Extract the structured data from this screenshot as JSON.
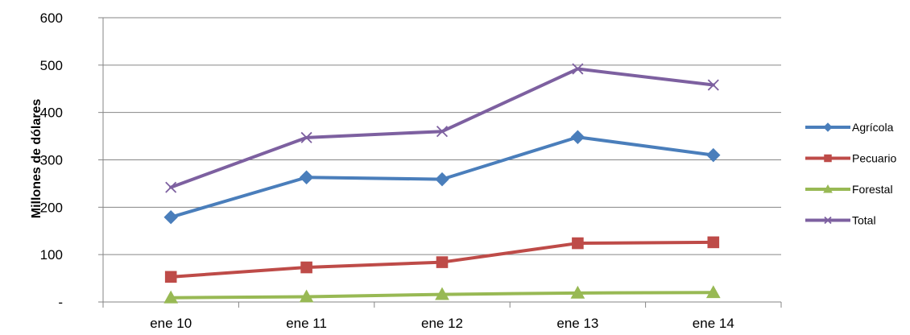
{
  "chart_data": {
    "type": "line",
    "title": "",
    "xlabel": "",
    "ylabel": "Millones de dólares",
    "categories": [
      "ene 10",
      "ene 11",
      "ene 12",
      "ene 13",
      "ene 14"
    ],
    "ylim": [
      0,
      600
    ],
    "y_ticks": [
      {
        "value": 0,
        "label": "-"
      },
      {
        "value": 100,
        "label": "100"
      },
      {
        "value": 200,
        "label": "200"
      },
      {
        "value": 300,
        "label": "300"
      },
      {
        "value": 400,
        "label": "400"
      },
      {
        "value": 500,
        "label": "500"
      },
      {
        "value": 600,
        "label": "600"
      }
    ],
    "grid": true,
    "legend_position": "right",
    "series": [
      {
        "name": "Agrícola",
        "marker": "diamond",
        "color": "#4A7EBB",
        "values": [
          179,
          263,
          259,
          348,
          310
        ]
      },
      {
        "name": "Pecuario",
        "marker": "square",
        "color": "#BE4B48",
        "values": [
          53,
          73,
          84,
          124,
          126
        ]
      },
      {
        "name": "Forestal",
        "marker": "triangle",
        "color": "#98B954",
        "values": [
          9,
          11,
          16,
          19,
          20
        ]
      },
      {
        "name": "Total",
        "marker": "x",
        "color": "#7D60A0",
        "values": [
          242,
          347,
          360,
          492,
          458
        ]
      }
    ]
  }
}
